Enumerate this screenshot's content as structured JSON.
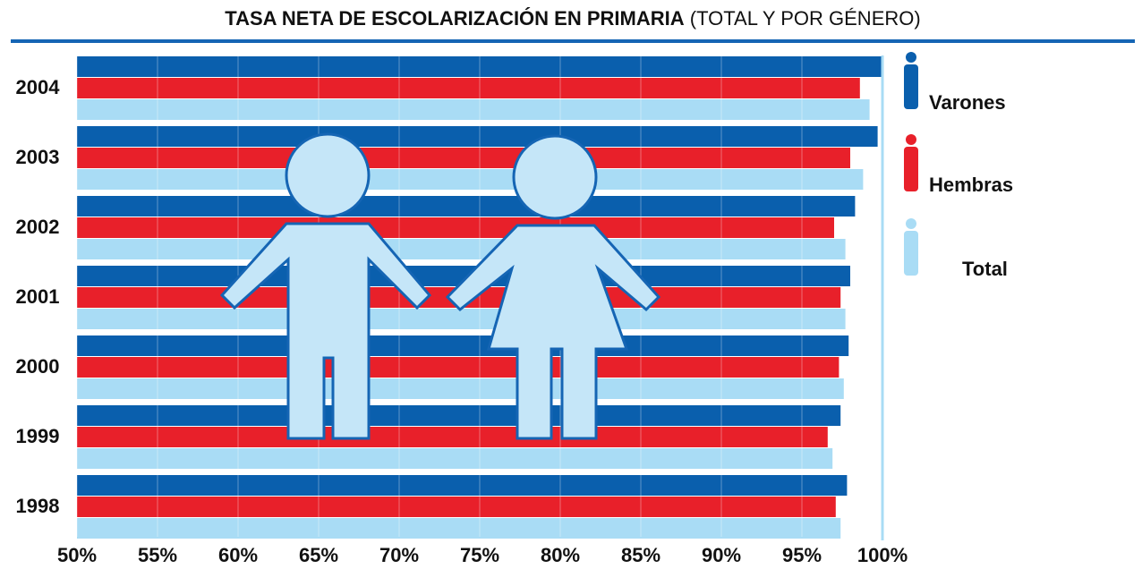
{
  "chart_data": {
    "type": "bar",
    "orientation": "horizontal",
    "title": "TASA NETA DE ESCOLARIZACIÓN EN PRIMARIA",
    "subtitle": "(TOTAL Y POR GÉNERO)",
    "categories": [
      "2004",
      "2003",
      "2002",
      "2001",
      "2000",
      "1999",
      "1998"
    ],
    "series": [
      {
        "name": "Varones",
        "color": "#0a5fad",
        "values": [
          100.0,
          99.7,
          98.3,
          98.0,
          97.9,
          97.4,
          97.8
        ]
      },
      {
        "name": "Hembras",
        "color": "#e8202a",
        "values": [
          98.6,
          98.0,
          97.0,
          97.4,
          97.3,
          96.6,
          97.1
        ]
      },
      {
        "name": "Total",
        "color": "#a9dcf5",
        "values": [
          99.2,
          98.8,
          97.7,
          97.7,
          97.6,
          96.9,
          97.4
        ]
      }
    ],
    "xlim": [
      50,
      100
    ],
    "xticks": [
      {
        "value": 50,
        "label": "50%"
      },
      {
        "value": 55,
        "label": "55%"
      },
      {
        "value": 60,
        "label": "60%"
      },
      {
        "value": 65,
        "label": "65%"
      },
      {
        "value": 70,
        "label": "70%"
      },
      {
        "value": 75,
        "label": "75%"
      },
      {
        "value": 80,
        "label": "80%"
      },
      {
        "value": 85,
        "label": "85%"
      },
      {
        "value": 90,
        "label": "90%"
      },
      {
        "value": 95,
        "label": "95%"
      },
      {
        "value": 100,
        "label": "100%"
      }
    ],
    "grid": true
  }
}
